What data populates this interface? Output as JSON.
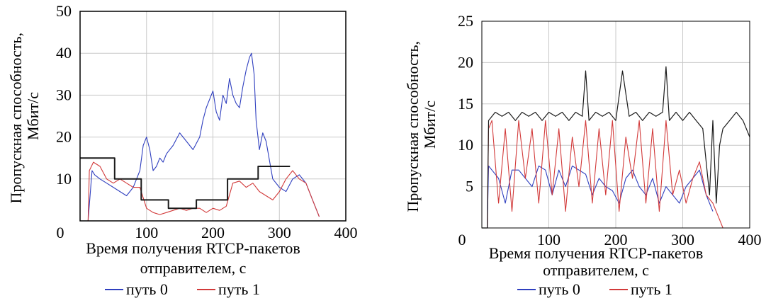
{
  "colors": {
    "path0": "#2f3fbf",
    "path1": "#d23a3a",
    "reference": "#1a1a1a",
    "grid": "#c8c8c8",
    "axis": "#000000"
  },
  "chart_data": [
    {
      "type": "line",
      "title": "",
      "xlabel_lines": [
        "Время получения RTCP-пакетов",
        "отправителем, с"
      ],
      "ylabel_lines": [
        "Пропускная способность,",
        "Мбит/с"
      ],
      "xlim": [
        0,
        400
      ],
      "ylim": [
        0,
        50
      ],
      "xticks": [
        0,
        100,
        200,
        300,
        400
      ],
      "xtick_labels": [
        "0",
        "100",
        "200",
        "300",
        "400"
      ],
      "yticks": [
        10,
        20,
        30,
        40,
        50
      ],
      "ytick_labels": [
        "10",
        "20",
        "30",
        "40",
        "50"
      ],
      "grid": true,
      "legend": {
        "placement": "bottom",
        "entries": [
          "путь 0",
          "путь 1"
        ]
      },
      "series": [
        {
          "name": "путь 0",
          "color_key": "path0",
          "x": [
            0,
            12,
            18,
            22,
            30,
            40,
            50,
            60,
            70,
            80,
            90,
            95,
            100,
            105,
            110,
            115,
            120,
            125,
            130,
            140,
            150,
            160,
            170,
            180,
            185,
            190,
            195,
            200,
            205,
            210,
            215,
            220,
            225,
            230,
            235,
            240,
            245,
            250,
            255,
            258,
            262,
            265,
            270,
            275,
            280,
            290,
            300,
            310,
            320,
            330,
            340,
            350,
            360
          ],
          "y": [
            0,
            0,
            12,
            11,
            10,
            9,
            8,
            7,
            6,
            8,
            12,
            18,
            20,
            17,
            12,
            13,
            15,
            14,
            16,
            18,
            21,
            19,
            17,
            20,
            24,
            27,
            29,
            31,
            26,
            24,
            30,
            28,
            34,
            30,
            28,
            27,
            32,
            36,
            39,
            40,
            35,
            24,
            17,
            21,
            19,
            10,
            8,
            7,
            10,
            11,
            9,
            5,
            1
          ]
        },
        {
          "name": "путь 1",
          "color_key": "path1",
          "x": [
            0,
            12,
            14,
            20,
            30,
            40,
            50,
            60,
            70,
            80,
            90,
            100,
            110,
            120,
            130,
            140,
            150,
            160,
            170,
            180,
            190,
            200,
            210,
            220,
            230,
            240,
            250,
            260,
            270,
            280,
            290,
            300,
            310,
            320,
            330,
            340,
            350,
            360
          ],
          "y": [
            0,
            0,
            12,
            14,
            13,
            10,
            9,
            10,
            9,
            8,
            8,
            3,
            2,
            1.5,
            2,
            2.5,
            3,
            2.5,
            3,
            3,
            2,
            3,
            2.5,
            3.5,
            9,
            9.5,
            8,
            9,
            7,
            6,
            5,
            7,
            10,
            12,
            10,
            9,
            5,
            1
          ]
        },
        {
          "name": "",
          "color_key": "reference",
          "x": [
            0,
            52,
            52,
            92,
            92,
            133,
            133,
            175,
            175,
            222,
            222,
            268,
            268,
            316
          ],
          "y": [
            15,
            15,
            10,
            10,
            5,
            5,
            3,
            3,
            5,
            5,
            10,
            10,
            13,
            13
          ]
        }
      ]
    },
    {
      "type": "line",
      "title": "",
      "xlabel_lines": [
        "Время получения RTCP-пакетов",
        "отправителем, с"
      ],
      "ylabel_lines": [
        "Пропускная способность,",
        "Мбит/с"
      ],
      "xlim": [
        0,
        400
      ],
      "ylim": [
        0,
        25
      ],
      "xticks": [
        0,
        100,
        200,
        300,
        400
      ],
      "xtick_labels": [
        "0",
        "100",
        "200",
        "300",
        "400"
      ],
      "yticks": [
        5,
        10,
        15,
        20,
        25
      ],
      "ytick_labels": [
        "5",
        "10",
        "15",
        "20",
        "25"
      ],
      "grid": true,
      "legend": {
        "placement": "bottom",
        "entries": [
          "путь 0",
          "путь 1"
        ]
      },
      "series": [
        {
          "name": "путь 0",
          "color_key": "path0",
          "x": [
            0,
            8,
            10,
            15,
            25,
            35,
            45,
            55,
            65,
            75,
            85,
            95,
            105,
            115,
            125,
            135,
            145,
            155,
            165,
            175,
            185,
            195,
            205,
            215,
            225,
            235,
            245,
            255,
            265,
            275,
            285,
            295,
            305,
            315,
            325,
            335,
            345
          ],
          "y": [
            0,
            0,
            7.5,
            7,
            6,
            3,
            7,
            7,
            6,
            5,
            7.5,
            7,
            4,
            7,
            5,
            7.5,
            7,
            6.5,
            4,
            6,
            5,
            4.5,
            3,
            6,
            7,
            5,
            4,
            6,
            3,
            5,
            4,
            3,
            5,
            6,
            7,
            4,
            2
          ]
        },
        {
          "name": "путь 1",
          "color_key": "path1",
          "x": [
            0,
            8,
            10,
            15,
            25,
            35,
            45,
            55,
            65,
            75,
            85,
            95,
            105,
            115,
            125,
            135,
            145,
            155,
            165,
            175,
            185,
            195,
            205,
            215,
            225,
            235,
            245,
            255,
            265,
            275,
            285,
            295,
            305,
            315,
            325,
            335,
            345,
            355,
            360
          ],
          "y": [
            0,
            0,
            12,
            13,
            3,
            12,
            2,
            13,
            6,
            12,
            3,
            13,
            4,
            12,
            2,
            11,
            5,
            13,
            3,
            12,
            4,
            13,
            2,
            11,
            6,
            13,
            3,
            12,
            2,
            13,
            4,
            7,
            3,
            6,
            8,
            4,
            3,
            1,
            0
          ]
        },
        {
          "name": "",
          "color_key": "reference",
          "x": [
            0,
            8,
            10,
            20,
            30,
            40,
            50,
            60,
            70,
            80,
            90,
            100,
            110,
            120,
            130,
            140,
            150,
            155,
            160,
            170,
            180,
            190,
            200,
            210,
            220,
            230,
            240,
            250,
            260,
            270,
            275,
            280,
            290,
            300,
            310,
            320,
            330,
            340,
            345,
            350,
            355,
            360,
            370,
            380,
            390,
            400
          ],
          "y": [
            0,
            0,
            13,
            14,
            13.5,
            14,
            13,
            14,
            13.5,
            14,
            13,
            14,
            13.5,
            14,
            13,
            14,
            13.5,
            19,
            13,
            14,
            13.5,
            14,
            13,
            19,
            13.5,
            14,
            13,
            14,
            13.5,
            14,
            19.5,
            13,
            14,
            13,
            14,
            13,
            12,
            4,
            13,
            3,
            10,
            12,
            13,
            14,
            13,
            11
          ]
        }
      ]
    }
  ]
}
